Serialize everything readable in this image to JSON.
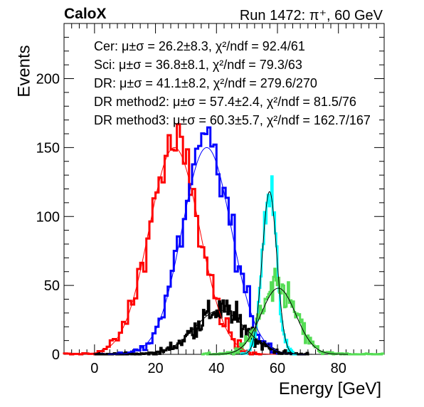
{
  "header": {
    "brand": "CaloX",
    "run_info": "Run 1472: π⁺, 60 GeV"
  },
  "legend": [
    "Cer: μ±σ = 26.2±8.3, χ²/ndf = 92.4/61",
    "Sci: μ±σ = 36.8±8.1, χ²/ndf = 79.3/63",
    "DR: μ±σ = 41.1±8.2, χ²/ndf = 279.6/270",
    "DR method2: μ±σ = 57.4±2.4, χ²/ndf = 81.5/76",
    "DR method3: μ±σ = 60.3±5.7, χ²/ndf = 162.7/167"
  ],
  "chart_data": {
    "type": "histogram",
    "xlabel": "Energy [GeV]",
    "ylabel": "Events",
    "xlim": [
      -10,
      95
    ],
    "ylim": [
      0,
      240
    ],
    "xticks": [
      0,
      20,
      40,
      60,
      80
    ],
    "yticks": [
      0,
      50,
      100,
      150,
      200
    ],
    "series": [
      {
        "name": "Cer",
        "color": "#ff0000",
        "mean": 26.2,
        "sigma": 8.3,
        "peak": 150,
        "binwidth": 1.0,
        "range": [
          -10,
          55
        ],
        "lineWidth": 3
      },
      {
        "name": "Sci",
        "color": "#0000ff",
        "mean": 36.8,
        "sigma": 8.1,
        "peak": 150,
        "binwidth": 1.0,
        "range": [
          0,
          60
        ],
        "lineWidth": 3
      },
      {
        "name": "DR",
        "color": "#000000",
        "mean": 41.1,
        "sigma": 8.2,
        "peak": 32,
        "binwidth": 0.4,
        "range": [
          0,
          70
        ],
        "lineWidth": 3
      },
      {
        "name": "DR method2",
        "color": "#00ffff",
        "mean": 57.4,
        "sigma": 2.4,
        "peak": 118,
        "binwidth": 0.4,
        "range": [
          48,
          66
        ],
        "lineWidth": 3
      },
      {
        "name": "DR method3",
        "color": "#55dd55",
        "mean": 60.3,
        "sigma": 5.7,
        "peak": 48,
        "binwidth": 0.4,
        "range": [
          35,
          95
        ],
        "lineWidth": 3
      }
    ]
  }
}
